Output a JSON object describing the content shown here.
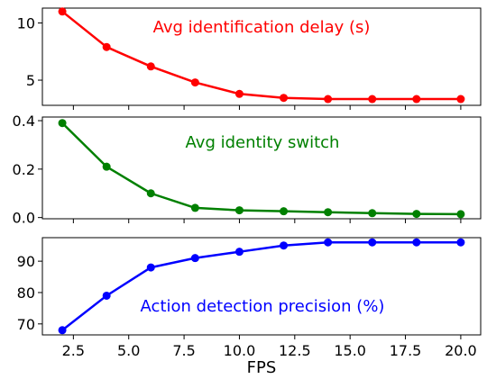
{
  "chart_data": [
    {
      "type": "line",
      "title": "",
      "xlabel": "",
      "ylabel": "",
      "annotation": "Avg identification delay (s)",
      "color": "#ff0000",
      "x": [
        2,
        4,
        6,
        8,
        10,
        12,
        14,
        16,
        18,
        20
      ],
      "values": [
        11.0,
        7.9,
        6.2,
        4.8,
        3.8,
        3.45,
        3.35,
        3.35,
        3.35,
        3.35
      ],
      "xlim": [
        1.1,
        20.9
      ],
      "ylim": [
        2.8,
        11.3
      ],
      "yticks": [
        5,
        10
      ],
      "ytick_labels": [
        "5",
        "10"
      ],
      "grid": false
    },
    {
      "type": "line",
      "title": "",
      "xlabel": "",
      "ylabel": "",
      "annotation": "Avg identity switch",
      "color": "#008000",
      "x": [
        2,
        4,
        6,
        8,
        10,
        12,
        14,
        16,
        18,
        20
      ],
      "values": [
        0.39,
        0.21,
        0.1,
        0.04,
        0.03,
        0.026,
        0.022,
        0.018,
        0.015,
        0.014
      ],
      "xlim": [
        1.1,
        20.9
      ],
      "ylim": [
        -0.005,
        0.415
      ],
      "yticks": [
        0.0,
        0.2,
        0.4
      ],
      "ytick_labels": [
        "0.0",
        "0.2",
        "0.4"
      ],
      "grid": false
    },
    {
      "type": "line",
      "title": "",
      "xlabel": "FPS",
      "ylabel": "",
      "annotation": "Action detection precision (%)",
      "color": "#0000ff",
      "x": [
        2,
        4,
        6,
        8,
        10,
        12,
        14,
        16,
        18,
        20
      ],
      "values": [
        68,
        79,
        88,
        91,
        93,
        95,
        96,
        96,
        96,
        96
      ],
      "xlim": [
        1.1,
        20.9
      ],
      "ylim": [
        66.5,
        97.5
      ],
      "yticks": [
        70,
        80,
        90
      ],
      "ytick_labels": [
        "70",
        "80",
        "90"
      ],
      "xticks": [
        2.5,
        5.0,
        7.5,
        10.0,
        12.5,
        15.0,
        17.5,
        20.0
      ],
      "xtick_labels": [
        "2.5",
        "5.0",
        "7.5",
        "10.0",
        "12.5",
        "15.0",
        "17.5",
        "20.0"
      ],
      "grid": false
    }
  ]
}
